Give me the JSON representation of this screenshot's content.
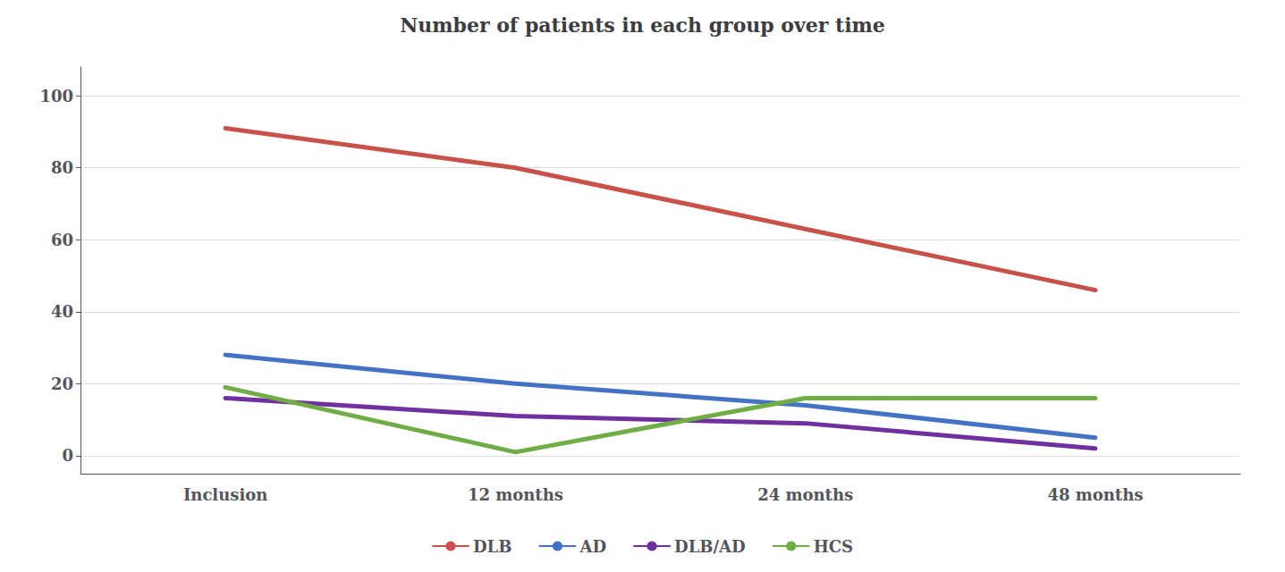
{
  "chart_data": {
    "type": "line",
    "title": "Number of patients in each group over time",
    "categories": [
      "Inclusion",
      "12 months",
      "24 months",
      "48 months"
    ],
    "series": [
      {
        "name": "DLB",
        "color": "#c8514a",
        "values": [
          91,
          80,
          63,
          46
        ]
      },
      {
        "name": "AD",
        "color": "#4472c4",
        "values": [
          28,
          20,
          14,
          5
        ]
      },
      {
        "name": "DLB/AD",
        "color": "#7030a0",
        "values": [
          16,
          11,
          9,
          2
        ]
      },
      {
        "name": "HCS",
        "color": "#70ad47",
        "values": [
          19,
          1,
          16,
          16
        ]
      }
    ],
    "ylim": [
      -5,
      108
    ],
    "yticks": [
      0,
      20,
      40,
      60,
      80,
      100
    ],
    "grid": true,
    "legend": "bottom"
  }
}
